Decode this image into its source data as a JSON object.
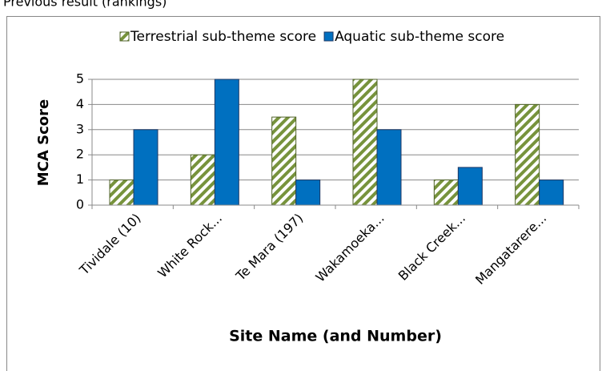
{
  "header": {
    "title": "Previous result (rankings)"
  },
  "chart_data": {
    "type": "bar",
    "y_label": "MCA Score",
    "x_label": "Site Name (and Number)",
    "categories": [
      "Tividale (10)",
      "White Rock...",
      "Te Mara (197)",
      "Wakamoeka...",
      "Black Creek...",
      "Mangatarere..."
    ],
    "series": [
      {
        "name": "Terrestrial sub-theme score",
        "color": "#77933c",
        "pattern": "hatch",
        "values": [
          1,
          2,
          3.5,
          5,
          1,
          4
        ]
      },
      {
        "name": "Aquatic sub-theme score",
        "color": "#0070c0",
        "values": [
          3,
          5,
          1,
          3,
          1.5,
          1
        ]
      }
    ],
    "ylim": [
      0,
      5
    ],
    "yticks": [
      0,
      1,
      2,
      3,
      4,
      5
    ],
    "grid": true,
    "legend": "top"
  }
}
